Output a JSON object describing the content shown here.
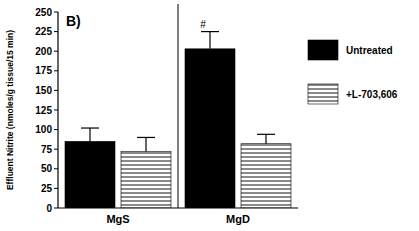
{
  "chart_data": {
    "type": "bar",
    "title": "B)",
    "y_label": "Effluent Nitrite (nmoles/g tissue/15 min)",
    "categories": [
      "MgS",
      "MgD"
    ],
    "series": [
      {
        "name": "Untreated",
        "color": "#000000",
        "values": [
          85,
          203
        ],
        "errors": [
          17,
          22
        ]
      },
      {
        "name": "+L-703,606",
        "color": "#8a8a8a",
        "values": [
          72,
          82
        ],
        "errors": [
          18,
          12
        ]
      }
    ],
    "annotations": [
      {
        "text": "#",
        "category": "MgD",
        "series": "Untreated"
      }
    ],
    "ylim": [
      0,
      250
    ],
    "yticks": [
      0,
      25,
      50,
      75,
      100,
      125,
      150,
      175,
      200,
      225,
      250
    ],
    "grid": false,
    "legend": "right"
  }
}
